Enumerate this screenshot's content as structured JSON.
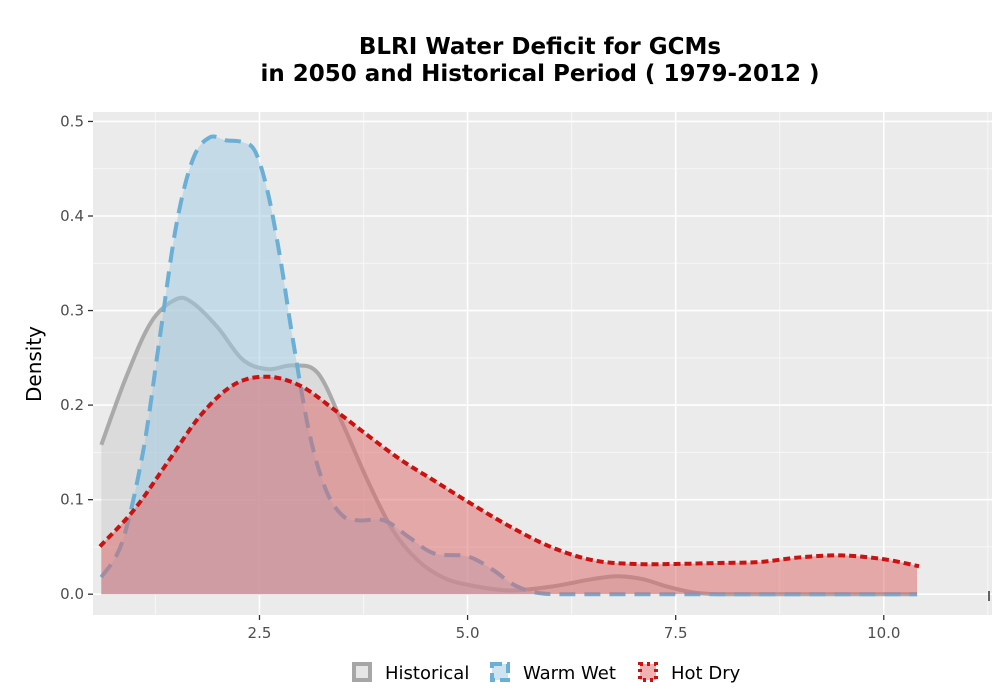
{
  "chart_data": {
    "type": "area",
    "title_line1": "BLRI  Water Deficit for GCMs",
    "title_line2": "in 2050 and Historical Period ( 1979-2012 )",
    "xlabel": "",
    "ylabel": "Density",
    "xlim": [
      0.5,
      11.3
    ],
    "ylim": [
      -0.022,
      0.51
    ],
    "x_ticks": [
      2.5,
      5.0,
      7.5,
      10.0
    ],
    "x_tick_labels": [
      "2.5",
      "5.0",
      "7.5",
      "10.0"
    ],
    "y_ticks": [
      0.0,
      0.1,
      0.2,
      0.3,
      0.4,
      0.5
    ],
    "y_tick_labels": [
      "0.0",
      "0.1",
      "0.2",
      "0.3",
      "0.4",
      "0.5"
    ],
    "grid": true,
    "legend_position": "bottom",
    "series": [
      {
        "name": "Historical",
        "line_color": "#a6a6a6",
        "fill_color": "#cccccc",
        "line_style": "solid",
        "x": [
          0.6,
          0.9,
          1.2,
          1.5,
          1.7,
          2.0,
          2.3,
          2.6,
          2.9,
          3.2,
          3.5,
          3.8,
          4.1,
          4.4,
          4.7,
          5.0,
          5.5,
          6.0,
          6.5,
          6.8,
          7.1,
          7.4,
          7.7,
          8.0,
          8.5,
          9.0,
          10.4
        ],
        "y": [
          0.158,
          0.23,
          0.288,
          0.312,
          0.308,
          0.282,
          0.248,
          0.238,
          0.242,
          0.234,
          0.18,
          0.12,
          0.068,
          0.036,
          0.018,
          0.01,
          0.004,
          0.008,
          0.016,
          0.019,
          0.016,
          0.008,
          0.002,
          0.0,
          0.0,
          0.0,
          0.0
        ]
      },
      {
        "name": "Warm Wet",
        "line_color": "#6baed6",
        "fill_color": "#9ecae1",
        "line_style": "dashed",
        "x": [
          0.6,
          0.85,
          1.1,
          1.3,
          1.5,
          1.7,
          1.9,
          2.1,
          2.3,
          2.45,
          2.6,
          2.75,
          2.9,
          3.1,
          3.3,
          3.5,
          3.7,
          4.0,
          4.3,
          4.6,
          5.0,
          5.3,
          5.6,
          6.0,
          7.0,
          8.0,
          10.4
        ],
        "y": [
          0.018,
          0.055,
          0.15,
          0.27,
          0.39,
          0.46,
          0.483,
          0.48,
          0.478,
          0.468,
          0.425,
          0.355,
          0.27,
          0.17,
          0.11,
          0.083,
          0.078,
          0.078,
          0.06,
          0.043,
          0.04,
          0.026,
          0.008,
          0.0,
          0.0,
          0.0,
          0.0
        ]
      },
      {
        "name": "Hot Dry",
        "line_color": "#cc1111",
        "fill_color": "#e06666",
        "line_style": "dotted",
        "x": [
          0.6,
          1.0,
          1.4,
          1.8,
          2.2,
          2.6,
          3.0,
          3.4,
          3.8,
          4.2,
          4.6,
          5.0,
          5.5,
          6.0,
          6.5,
          7.0,
          7.5,
          8.0,
          8.5,
          9.0,
          9.5,
          10.0,
          10.4
        ],
        "y": [
          0.052,
          0.09,
          0.14,
          0.19,
          0.222,
          0.23,
          0.22,
          0.195,
          0.168,
          0.142,
          0.12,
          0.098,
          0.072,
          0.05,
          0.036,
          0.032,
          0.032,
          0.033,
          0.034,
          0.039,
          0.041,
          0.037,
          0.03
        ]
      }
    ]
  }
}
